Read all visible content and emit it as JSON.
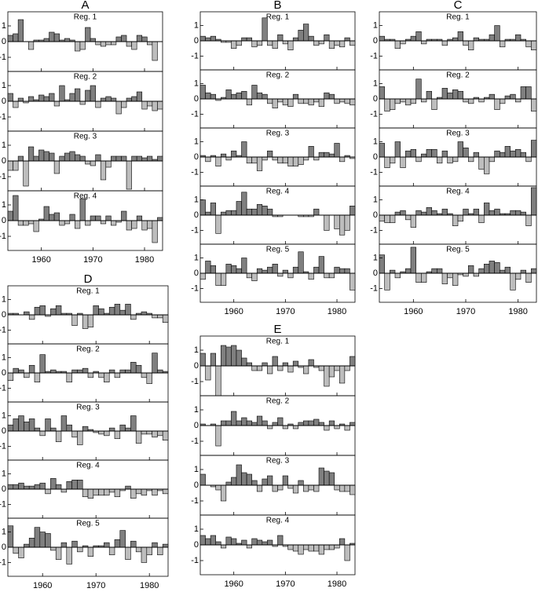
{
  "chart_data": [
    {
      "type": "bar",
      "title": "A",
      "x": [
        1954,
        1955,
        1956,
        1957,
        1958,
        1959,
        1960,
        1961,
        1962,
        1963,
        1964,
        1965,
        1966,
        1967,
        1968,
        1969,
        1970,
        1971,
        1972,
        1973,
        1974,
        1975,
        1976,
        1977,
        1978,
        1979,
        1980,
        1981,
        1982,
        1983
      ],
      "xlim": [
        1953.5,
        1983.5
      ],
      "xticks": [
        1960,
        1970,
        1980
      ],
      "ylim": [
        -1.9,
        1.9
      ],
      "yticks": [
        1,
        0,
        -1
      ],
      "positive_color": "#7f7f7f",
      "negative_color": "#bdbdbd",
      "panels": [
        {
          "name": "Reg. 1",
          "values": [
            0.4,
            0.5,
            1.4,
            0,
            -0.5,
            0.1,
            0.1,
            0.2,
            0.6,
            0.5,
            0.1,
            0.2,
            0.1,
            -0.6,
            -0.5,
            0.9,
            0.2,
            -0.2,
            -0.3,
            -0.2,
            -0.2,
            0.3,
            0.4,
            -0.3,
            -0.5,
            0.4,
            0.3,
            -0.2,
            -1.2,
            0
          ]
        },
        {
          "name": "Reg. 2",
          "values": [
            0.5,
            -0.4,
            0.2,
            -0.1,
            0.3,
            0.1,
            0.4,
            0.3,
            0.5,
            -0.3,
            1.0,
            0.1,
            0.5,
            0.8,
            -0.2,
            0.7,
            1.0,
            -0.4,
            0.2,
            0.3,
            0.2,
            -0.8,
            -0.4,
            0.2,
            0.3,
            0.6,
            -0.5,
            -0.3,
            -0.6,
            -0.5
          ]
        },
        {
          "name": "Reg. 3",
          "values": [
            -0.6,
            -0.6,
            0.3,
            -1.6,
            0.9,
            0.3,
            0.7,
            0.6,
            0.5,
            -0.8,
            0.3,
            0.5,
            0.6,
            0.4,
            0.3,
            -0.2,
            -0.3,
            0.4,
            -1.2,
            -0.4,
            0.3,
            0.3,
            0.3,
            -1.8,
            0.3,
            0.3,
            0.2,
            0.3,
            0.1,
            0.3
          ]
        },
        {
          "name": "Reg. 4",
          "values": [
            0.6,
            1.6,
            -0.3,
            -0.3,
            -0.2,
            -0.7,
            0.1,
            0.9,
            0.4,
            0.5,
            -0.3,
            -0.2,
            0.4,
            -0.5,
            1.4,
            -0.3,
            0.3,
            0.3,
            -0.2,
            0.3,
            -0.3,
            -0.1,
            0.6,
            -0.6,
            -0.5,
            0.3,
            -0.6,
            -0.5,
            -1.4,
            0.2
          ]
        }
      ]
    },
    {
      "type": "bar",
      "title": "B",
      "x": [
        1954,
        1955,
        1956,
        1957,
        1958,
        1959,
        1960,
        1961,
        1962,
        1963,
        1964,
        1965,
        1966,
        1967,
        1968,
        1969,
        1970,
        1971,
        1972,
        1973,
        1974,
        1975,
        1976,
        1977,
        1978,
        1979,
        1980,
        1981,
        1982,
        1983
      ],
      "xlim": [
        1953.5,
        1983.5
      ],
      "xticks": [
        1960,
        1970,
        1980
      ],
      "ylim": [
        -1.9,
        1.9
      ],
      "yticks": [
        1,
        0,
        -1
      ],
      "positive_color": "#7f7f7f",
      "negative_color": "#bdbdbd",
      "panels": [
        {
          "name": "Reg. 1",
          "values": [
            0.3,
            0.2,
            0.3,
            0.1,
            -0.1,
            -0.1,
            -0.5,
            -0.3,
            0.2,
            0.2,
            -0.4,
            -0.3,
            1.5,
            -0.3,
            -0.5,
            0.4,
            -0.2,
            -0.6,
            0.2,
            0.7,
            1.1,
            0.3,
            -0.3,
            -0.2,
            0.4,
            -0.5,
            -0.3,
            -0.4,
            0.2,
            -0.3
          ]
        },
        {
          "name": "Reg. 2",
          "values": [
            0.9,
            0.4,
            0.3,
            -0.1,
            0.1,
            0.6,
            0.3,
            0.4,
            0.5,
            -0.4,
            0.9,
            0.4,
            0.3,
            -0.3,
            -0.6,
            -0.2,
            -0.4,
            -0.5,
            0.3,
            -0.3,
            -0.3,
            -0.4,
            -0.2,
            -0.5,
            0.4,
            0.3,
            -0.3,
            -0.2,
            -0.3,
            -0.4
          ]
        },
        {
          "name": "Reg. 3",
          "values": [
            0.1,
            -0.3,
            0.1,
            -0.6,
            0.2,
            -0.2,
            0.4,
            0.1,
            1.0,
            -0.4,
            -0.4,
            -0.9,
            -0.2,
            0.4,
            -0.2,
            -0.4,
            -0.4,
            -0.6,
            -0.6,
            -0.5,
            -0.2,
            0.7,
            -0.2,
            0.3,
            0.3,
            0.2,
            0.9,
            -0.3,
            0.1,
            -0.1
          ]
        },
        {
          "name": "Reg. 4",
          "values": [
            1.0,
            0.2,
            0.8,
            -1.2,
            0.2,
            0.3,
            0.3,
            0.9,
            1.5,
            0.4,
            0.4,
            0.7,
            0.6,
            0.4,
            -0.1,
            -0.1,
            0,
            0,
            0,
            -0.1,
            -0.1,
            -0.1,
            0.4,
            0,
            -1.0,
            0,
            -0.9,
            -1.3,
            -1.0,
            0.6
          ]
        },
        {
          "name": "Reg. 5",
          "values": [
            -0.4,
            0.8,
            0.5,
            -0.8,
            -0.8,
            0.6,
            0.5,
            0.3,
            1.0,
            -0.3,
            -0.5,
            0.3,
            0.2,
            0.4,
            0.6,
            -0.2,
            0.2,
            -0.3,
            0.4,
            1.4,
            0.1,
            -0.4,
            0.4,
            1.1,
            -0.3,
            -0.3,
            0.4,
            0.3,
            0.3,
            -1.1
          ]
        }
      ]
    },
    {
      "type": "bar",
      "title": "C",
      "x": [
        1954,
        1955,
        1956,
        1957,
        1958,
        1959,
        1960,
        1961,
        1962,
        1963,
        1964,
        1965,
        1966,
        1967,
        1968,
        1969,
        1970,
        1971,
        1972,
        1973,
        1974,
        1975,
        1976,
        1977,
        1978,
        1979,
        1980,
        1981,
        1982,
        1983
      ],
      "xlim": [
        1953.5,
        1983.5
      ],
      "xticks": [
        1960,
        1970,
        1980
      ],
      "ylim": [
        -1.9,
        1.9
      ],
      "yticks": [
        1,
        0,
        -1
      ],
      "positive_color": "#7f7f7f",
      "negative_color": "#bdbdbd",
      "panels": [
        {
          "name": "Reg. 1",
          "values": [
            0.3,
            0.1,
            0.1,
            -0.5,
            -0.2,
            0.1,
            0.3,
            0.6,
            -0.2,
            0.1,
            0.1,
            0.1,
            -0.3,
            0.1,
            0.2,
            0.6,
            -0.3,
            -0.6,
            0.2,
            0.1,
            0.1,
            0.4,
            1.0,
            -0.4,
            0.1,
            0.1,
            0.4,
            0.1,
            -0.4,
            -0.6
          ]
        },
        {
          "name": "Reg. 2",
          "values": [
            0.8,
            -0.8,
            -0.7,
            -0.3,
            -0.2,
            -0.4,
            -0.3,
            1.3,
            -0.2,
            0.5,
            -0.7,
            0.1,
            0.7,
            0.4,
            0.6,
            0.5,
            -0.2,
            -0.3,
            0.1,
            -0.2,
            0.1,
            0.3,
            -0.7,
            -0.3,
            0.2,
            0.3,
            -0.2,
            0.8,
            0.8,
            -0.8
          ]
        },
        {
          "name": "Reg. 3",
          "values": [
            0.9,
            -0.7,
            -0.4,
            1.0,
            -0.7,
            0.4,
            0.5,
            -0.3,
            0.2,
            0.5,
            0.5,
            -0.4,
            0.4,
            -0.4,
            -0.3,
            1.0,
            0.6,
            -0.3,
            0.3,
            -0.8,
            -1.1,
            -0.3,
            0.4,
            0.3,
            0.7,
            0.4,
            0.5,
            0.3,
            -0.3,
            1.1
          ]
        },
        {
          "name": "Reg. 4",
          "values": [
            -0.4,
            -0.5,
            -0.5,
            0.2,
            0.3,
            -0.3,
            -0.8,
            0.3,
            0.2,
            0.5,
            0.3,
            0.1,
            0.4,
            0.1,
            -0.7,
            -0.4,
            0.4,
            0.1,
            0.4,
            -0.5,
            0.8,
            0.3,
            0.4,
            0.1,
            0.1,
            0.3,
            0.3,
            0.2,
            -0.7,
            1.8
          ]
        },
        {
          "name": "Reg. 5",
          "values": [
            1.2,
            -1.1,
            0.2,
            -0.3,
            0.1,
            0.3,
            1.7,
            -0.6,
            -0.6,
            0.1,
            0.3,
            0.3,
            -0.7,
            -0.3,
            -0.8,
            -0.1,
            -0.2,
            0.5,
            -0.2,
            0.3,
            0.6,
            0.8,
            0.7,
            0.2,
            0.4,
            -1.1,
            -0.4,
            0.2,
            -0.6,
            0.3
          ]
        }
      ]
    },
    {
      "type": "bar",
      "title": "D",
      "x": [
        1954,
        1955,
        1956,
        1957,
        1958,
        1959,
        1960,
        1961,
        1962,
        1963,
        1964,
        1965,
        1966,
        1967,
        1968,
        1969,
        1970,
        1971,
        1972,
        1973,
        1974,
        1975,
        1976,
        1977,
        1978,
        1979,
        1980,
        1981,
        1982,
        1983
      ],
      "xlim": [
        1953.5,
        1983.5
      ],
      "xticks": [
        1960,
        1970,
        1980
      ],
      "ylim": [
        -1.9,
        1.9
      ],
      "yticks": [
        1,
        0,
        -1
      ],
      "positive_color": "#7f7f7f",
      "negative_color": "#bdbdbd",
      "panels": [
        {
          "name": "Reg. 1",
          "values": [
            0.1,
            0.1,
            0,
            0.2,
            -0.3,
            0.5,
            0.6,
            -0.1,
            0.4,
            0.6,
            0.1,
            0.1,
            -0.7,
            0.1,
            -0.9,
            -0.8,
            0.6,
            0.4,
            0.1,
            0.5,
            0.7,
            0.3,
            0.7,
            -0.3,
            0.1,
            0.2,
            0.1,
            -0.2,
            -0.2,
            -0.5
          ]
        },
        {
          "name": "Reg. 2",
          "values": [
            -0.5,
            0.3,
            0.2,
            -0.3,
            0.5,
            -0.6,
            1.2,
            0.1,
            0.2,
            0.1,
            0.1,
            -0.6,
            0.2,
            0.2,
            0.3,
            -0.3,
            0.1,
            -0.3,
            -0.6,
            0.2,
            -0.3,
            0.2,
            0.2,
            0.7,
            0.5,
            -0.3,
            -0.7,
            1.3,
            0.2,
            0.1
          ]
        },
        {
          "name": "Reg. 3",
          "values": [
            0.4,
            0.8,
            1.0,
            0.6,
            0.8,
            0.2,
            -0.3,
            0.8,
            0.2,
            -0.7,
            1.0,
            0.4,
            -0.4,
            -0.9,
            0.3,
            0.1,
            -0.1,
            -0.2,
            -0.3,
            0.2,
            -0.5,
            0.4,
            0.2,
            1.0,
            -0.8,
            -0.2,
            -0.2,
            -0.4,
            -0.3,
            -0.6
          ]
        },
        {
          "name": "Reg. 4",
          "values": [
            0.3,
            0.3,
            0.4,
            0.2,
            0.2,
            0.3,
            0.4,
            -0.3,
            0.7,
            0.3,
            -0.2,
            0.5,
            0.6,
            0.6,
            -0.5,
            -0.6,
            -0.4,
            -0.4,
            -0.4,
            -0.2,
            -0.5,
            -0.1,
            0.2,
            -0.6,
            -0.3,
            -0.4,
            -0.1,
            -0.4,
            -0.1,
            -0.3
          ]
        },
        {
          "name": "Reg. 5",
          "values": [
            1.4,
            -0.4,
            -0.7,
            0.2,
            0.6,
            1.3,
            1.0,
            0.9,
            -0.2,
            -0.8,
            0.3,
            -1.1,
            0.4,
            -0.3,
            0.1,
            -0.6,
            0.1,
            0.1,
            0.3,
            -0.5,
            0.5,
            1.1,
            -0.8,
            0.4,
            -0.3,
            -1.0,
            -0.5,
            0.3,
            -0.5,
            0.2
          ]
        }
      ]
    },
    {
      "type": "bar",
      "title": "E",
      "x": [
        1954,
        1955,
        1956,
        1957,
        1958,
        1959,
        1960,
        1961,
        1962,
        1963,
        1964,
        1965,
        1966,
        1967,
        1968,
        1969,
        1970,
        1971,
        1972,
        1973,
        1974,
        1975,
        1976,
        1977,
        1978,
        1979,
        1980,
        1981,
        1982,
        1983
      ],
      "xlim": [
        1953.5,
        1983.5
      ],
      "xticks": [
        1960,
        1970,
        1980
      ],
      "ylim": [
        -1.9,
        1.9
      ],
      "yticks": [
        1,
        0,
        -1
      ],
      "positive_color": "#7f7f7f",
      "negative_color": "#bdbdbd",
      "panels": [
        {
          "name": "Reg. 1",
          "values": [
            0.8,
            -0.9,
            0.8,
            -1.9,
            1.3,
            1.2,
            1.3,
            1.0,
            0.5,
            0.2,
            -0.3,
            -0.3,
            0.2,
            -0.5,
            0.6,
            -0.3,
            0.2,
            -0.4,
            0.3,
            -0.1,
            -0.5,
            0.4,
            -0.1,
            -0.3,
            -1.3,
            -0.7,
            -0.3,
            -1.1,
            -0.3,
            0.6
          ]
        },
        {
          "name": "Reg. 2",
          "values": [
            0.1,
            0,
            0.1,
            -1.3,
            0.3,
            0.3,
            0.9,
            0.3,
            0.5,
            0.3,
            0.2,
            0.6,
            0.3,
            -0.2,
            0.2,
            0.5,
            -0.2,
            0.1,
            -0.2,
            0.2,
            0.3,
            0.3,
            0.4,
            0.2,
            -0.3,
            0.3,
            -0.2,
            0.1,
            -0.3,
            0.2
          ]
        },
        {
          "name": "Reg. 3",
          "values": [
            0.7,
            0,
            -0.1,
            -0.3,
            -1.0,
            0.2,
            0.5,
            1.3,
            0.8,
            0.7,
            0.3,
            -0.4,
            0.4,
            0.6,
            -0.4,
            -0.3,
            0.6,
            -0.2,
            -0.5,
            0.3,
            -0.4,
            -0.3,
            -0.4,
            1.1,
            0.9,
            0.8,
            -0.3,
            -0.4,
            -0.4,
            -0.6
          ]
        },
        {
          "name": "Reg. 4",
          "values": [
            0.6,
            0.4,
            0.6,
            0.2,
            -0.2,
            0.5,
            0.4,
            0.1,
            0.3,
            -0.2,
            0.4,
            0.3,
            0.2,
            0.3,
            -0.1,
            0.6,
            -0.1,
            -0.3,
            -0.4,
            -0.6,
            -0.3,
            -0.4,
            -0.4,
            -0.6,
            -0.3,
            -0.3,
            -0.2,
            0.4,
            -1.0,
            0.1
          ]
        }
      ]
    }
  ]
}
